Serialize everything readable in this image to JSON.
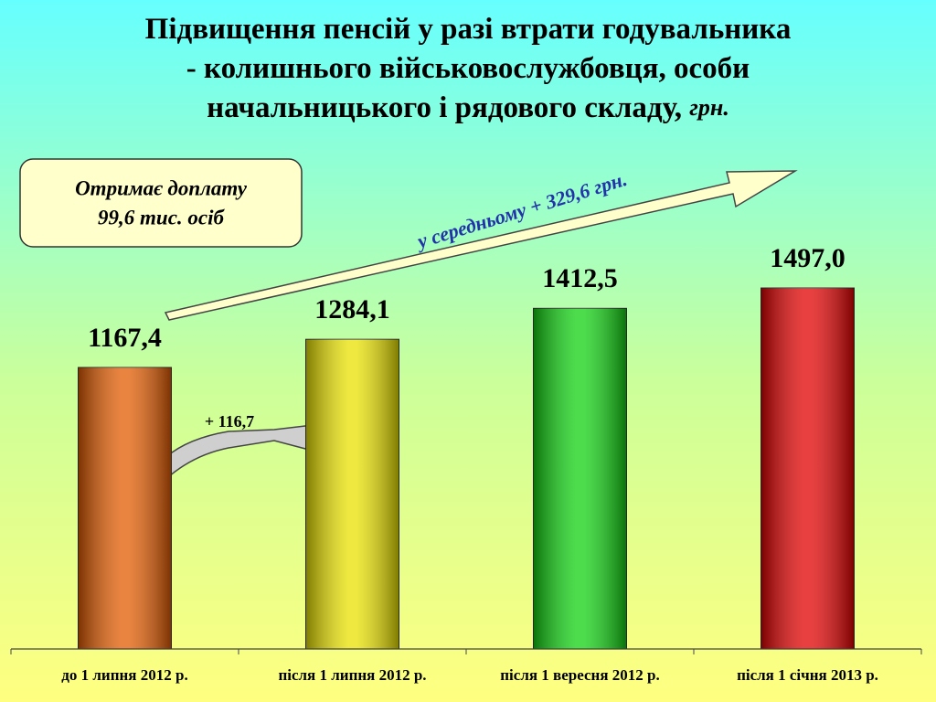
{
  "chart_data": {
    "type": "bar",
    "title": "Підвищення пенсій у разі втрати годувальника - колишнього військовослужбовця, особи начальницького і рядового складу,",
    "title_unit": "грн.",
    "categories": [
      "до 1 липня 2012 р.",
      "після 1 липня 2012 р.",
      "після 1 вересня 2012 р.",
      "після 1 січня 2013 р."
    ],
    "values": [
      1167.4,
      1284.1,
      1412.5,
      1497.0
    ],
    "value_labels": [
      "1167,4",
      "1284,1",
      "1412,5",
      "1497,0"
    ],
    "colors": [
      "#e05a00",
      "#e8e000",
      "#10d010",
      "#e00000"
    ],
    "callout": [
      "Отримає доплату",
      "99,6 тис. осіб"
    ],
    "trend_label": "у середньому + 329,6 грн.",
    "step_label": "+ 116,7"
  }
}
